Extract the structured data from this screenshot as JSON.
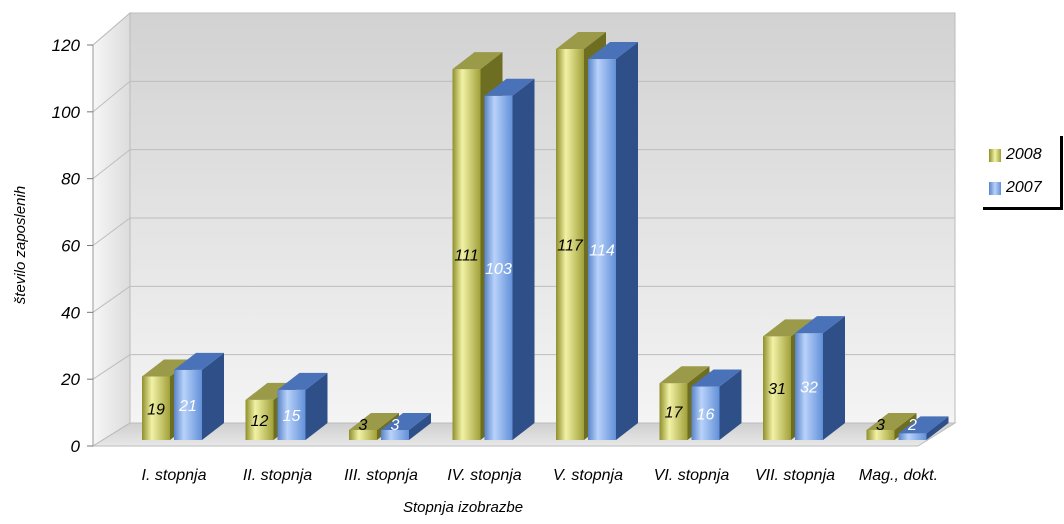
{
  "chart_data": {
    "type": "bar",
    "title": "",
    "xlabel": "Stopnja izobrazbe",
    "ylabel": "število zaposlenih",
    "ylim": [
      0,
      120
    ],
    "yticks": [
      0,
      20,
      40,
      60,
      80,
      100,
      120
    ],
    "categories": [
      "I. stopnja",
      "II. stopnja",
      "III. stopnja",
      "IV. stopnja",
      "V. stopnja",
      "VI. stopnja",
      "VII. stopnja",
      "Mag., dokt."
    ],
    "series": [
      {
        "name": "2008",
        "values": [
          19,
          12,
          3,
          111,
          117,
          17,
          31,
          3
        ],
        "color": "#c8c858",
        "label_color": "#000000"
      },
      {
        "name": "2007",
        "values": [
          21,
          15,
          3,
          103,
          114,
          16,
          32,
          2
        ],
        "color": "#78a8ec",
        "label_color": "#ffffff"
      }
    ],
    "grid": true,
    "style": "3d-column",
    "legend_position": "right"
  }
}
